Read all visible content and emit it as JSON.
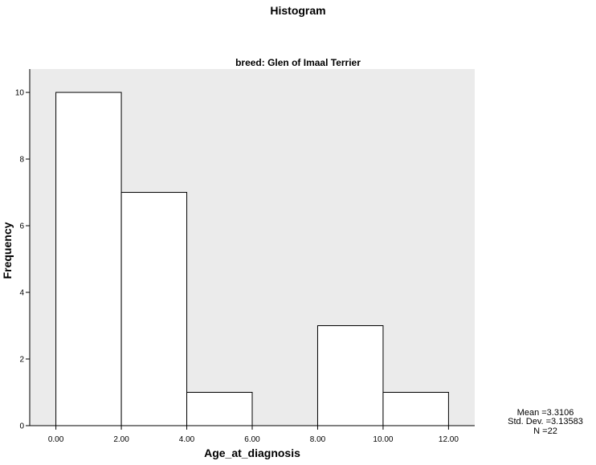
{
  "chart_data": {
    "type": "bar",
    "title": "Histogram",
    "subtitle": "breed: Glen of Imaal Terrier",
    "xlabel": "Age_at_diagnosis",
    "ylabel": "Frequency",
    "bins": [
      {
        "from": 0,
        "to": 2,
        "count": 10
      },
      {
        "from": 2,
        "to": 4,
        "count": 7
      },
      {
        "from": 4,
        "to": 6,
        "count": 1
      },
      {
        "from": 6,
        "to": 8,
        "count": 0
      },
      {
        "from": 8,
        "to": 10,
        "count": 3
      },
      {
        "from": 10,
        "to": 12,
        "count": 1
      }
    ],
    "xticks": [
      "0.00",
      "2.00",
      "4.00",
      "6.00",
      "8.00",
      "10.00",
      "12.00"
    ],
    "xtick_values": [
      0,
      2,
      4,
      6,
      8,
      10,
      12
    ],
    "yticks": [
      "0",
      "2",
      "4",
      "6",
      "8",
      "10"
    ],
    "ytick_values": [
      0,
      2,
      4,
      6,
      8,
      10
    ],
    "xlim": [
      -0.8,
      12.8
    ],
    "ylim": [
      0,
      10.7
    ],
    "plot_background": "#ebebeb",
    "bar_fill": "#ffffff",
    "bar_stroke": "#000000",
    "stats": {
      "mean": "Mean =3.3106",
      "std_dev": "Std. Dev. =3.13583",
      "n": "N =22"
    }
  }
}
